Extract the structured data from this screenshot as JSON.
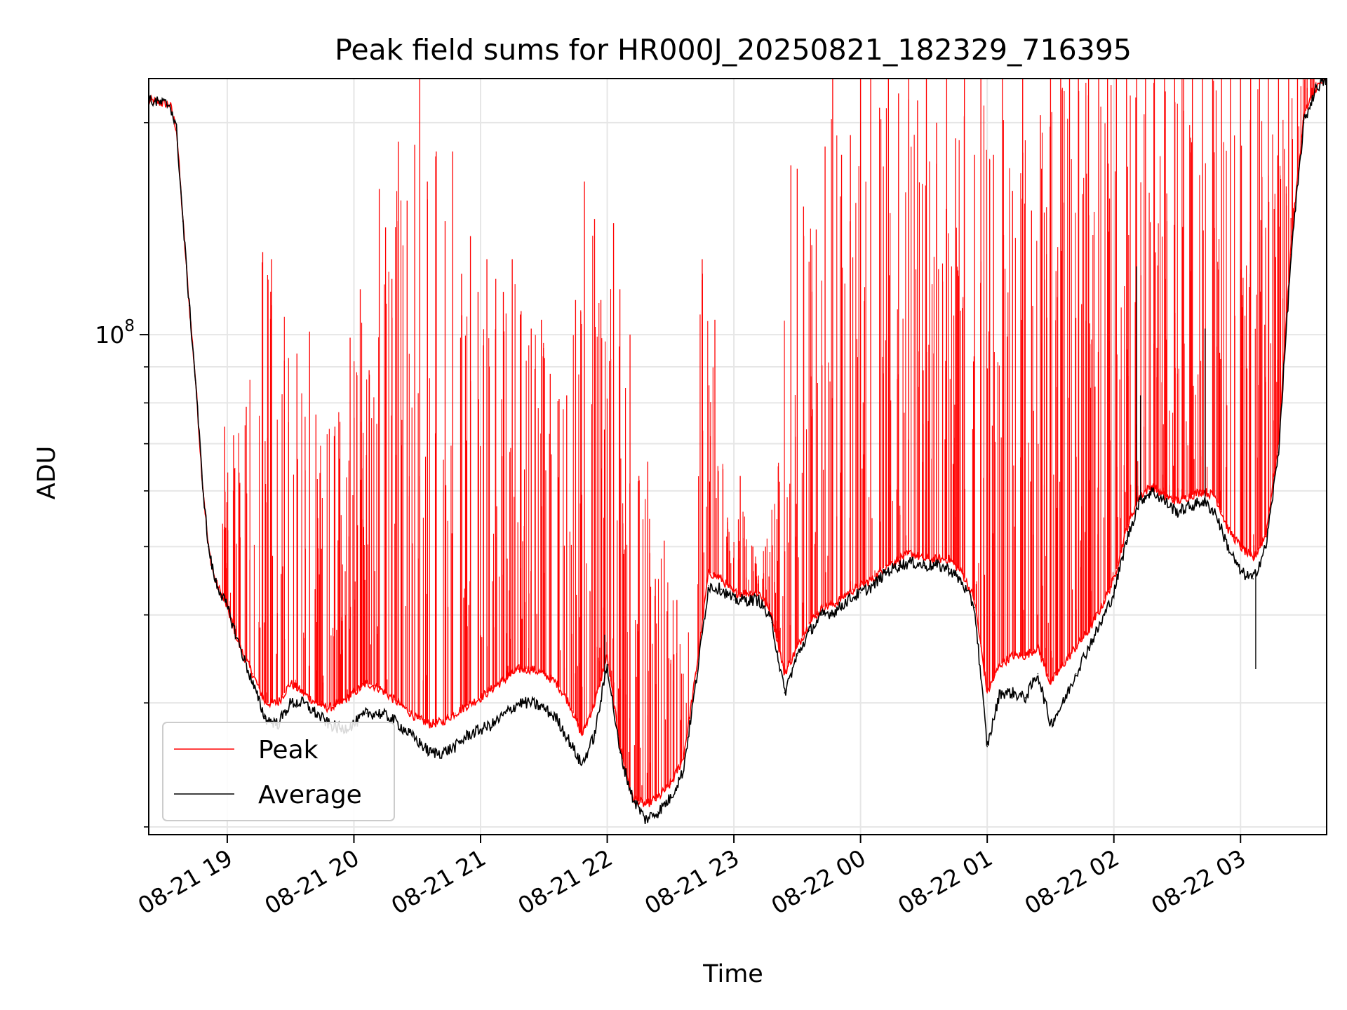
{
  "chart_data": {
    "type": "line",
    "title": "Peak field sums for HR000J_20250821_182329_716395",
    "xlabel": "Time",
    "ylabel": "ADU",
    "yscale": "log",
    "grid": true,
    "legend_position": "bottom-left",
    "xlim": [
      18.38,
      27.68
    ],
    "ylim": [
      19500000.0,
      231000000.0
    ],
    "x_ticks": [
      {
        "value": 19,
        "label": "08-21 19"
      },
      {
        "value": 20,
        "label": "08-21 20"
      },
      {
        "value": 21,
        "label": "08-21 21"
      },
      {
        "value": 22,
        "label": "08-21 22"
      },
      {
        "value": 23,
        "label": "08-21 23"
      },
      {
        "value": 24,
        "label": "08-22 00"
      },
      {
        "value": 25,
        "label": "08-22 01"
      },
      {
        "value": 26,
        "label": "08-22 02"
      },
      {
        "value": 27,
        "label": "08-22 03"
      }
    ],
    "y_major_ticks": [
      {
        "value": 100000000,
        "base": "10",
        "exp": "8"
      }
    ],
    "y_minor_ticks": [
      20000000,
      30000000,
      40000000,
      50000000,
      60000000,
      70000000,
      80000000,
      90000000,
      200000000
    ],
    "series": [
      {
        "name": "Peak",
        "color": "#ff0000",
        "x": [
          18.38,
          18.55,
          18.6,
          18.65,
          18.7,
          18.75,
          18.8,
          18.85,
          18.9,
          19.0,
          19.1,
          19.2,
          19.3,
          19.4,
          19.5,
          19.6,
          19.7,
          19.8,
          19.9,
          20.0,
          20.1,
          20.2,
          20.3,
          20.4,
          20.5,
          20.6,
          20.7,
          20.8,
          20.9,
          21.0,
          21.1,
          21.2,
          21.3,
          21.4,
          21.5,
          21.6,
          21.7,
          21.8,
          21.9,
          22.0,
          22.1,
          22.2,
          22.3,
          22.4,
          22.5,
          22.6,
          22.7,
          22.8,
          22.9,
          23.0,
          23.1,
          23.2,
          23.3,
          23.4,
          23.5,
          23.6,
          23.7,
          23.8,
          23.9,
          24.0,
          24.1,
          24.2,
          24.3,
          24.4,
          24.5,
          24.6,
          24.7,
          24.8,
          24.9,
          25.0,
          25.1,
          25.2,
          25.3,
          25.4,
          25.5,
          25.6,
          25.7,
          25.8,
          25.9,
          26.0,
          26.1,
          26.2,
          26.3,
          26.4,
          26.5,
          26.6,
          26.7,
          26.8,
          26.9,
          27.0,
          27.1,
          27.2,
          27.3,
          27.4,
          27.5,
          27.6,
          27.68
        ],
        "y": [
          215000000.0,
          212000000.0,
          195000000.0,
          145000000.0,
          110000000.0,
          86000000.0,
          63000000.0,
          50000000.0,
          45000000.0,
          41000000.0,
          36000000.0,
          33000000.0,
          30000000.0,
          30000000.0,
          32000000.0,
          31000000.0,
          30000000.0,
          29500000.0,
          30000000.0,
          31000000.0,
          32000000.0,
          31500000.0,
          30500000.0,
          29500000.0,
          28500000.0,
          28000000.0,
          28200000.0,
          29000000.0,
          29800000.0,
          30500000.0,
          31500000.0,
          32500000.0,
          33500000.0,
          33500000.0,
          33000000.0,
          32000000.0,
          30000000.0,
          27000000.0,
          30000000.0,
          35000000.0,
          26000000.0,
          22000000.0,
          21500000.0,
          22000000.0,
          23000000.0,
          25000000.0,
          33000000.0,
          46000000.0,
          45000000.0,
          43000000.0,
          43000000.0,
          43000000.0,
          40000000.0,
          33000000.0,
          36000000.0,
          39000000.0,
          41000000.0,
          41500000.0,
          43000000.0,
          44000000.0,
          45000000.0,
          47000000.0,
          48000000.0,
          49000000.0,
          48000000.0,
          48000000.0,
          48000000.0,
          46000000.0,
          42000000.0,
          31000000.0,
          34000000.0,
          35000000.0,
          35000000.0,
          36000000.0,
          32000000.0,
          34000000.0,
          36000000.0,
          38000000.0,
          41000000.0,
          45000000.0,
          53000000.0,
          59000000.0,
          61000000.0,
          59000000.0,
          58000000.0,
          59000000.0,
          60000000.0,
          59000000.0,
          53000000.0,
          50000000.0,
          48000000.0,
          52000000.0,
          70000000.0,
          135000000.0,
          205000000.0,
          225000000.0,
          230000000.0
        ],
        "spikes": [
          [
            18.98,
            74000000.0
          ],
          [
            19.05,
            72000000.0
          ],
          [
            19.15,
            79000000.0
          ],
          [
            19.28,
            131000000.0
          ],
          [
            19.35,
            128000000.0
          ],
          [
            19.55,
            94000000.0
          ],
          [
            19.65,
            101000000.0
          ],
          [
            19.7,
            77000000.0
          ],
          [
            19.85,
            74000000.0
          ],
          [
            19.97,
            99000000.0
          ],
          [
            20.05,
            116000000.0
          ],
          [
            20.12,
            89000000.0
          ],
          [
            20.2,
            161000000.0
          ],
          [
            20.25,
            142000000.0
          ],
          [
            20.3,
            120000000.0
          ],
          [
            20.35,
            188000000.0
          ],
          [
            20.42,
            155000000.0
          ],
          [
            20.48,
            186000000.0
          ],
          [
            20.52,
            231000000.0
          ],
          [
            20.58,
            165000000.0
          ],
          [
            20.65,
            182000000.0
          ],
          [
            20.72,
            145000000.0
          ],
          [
            20.78,
            182000000.0
          ],
          [
            20.85,
            122000000.0
          ],
          [
            20.92,
            138000000.0
          ],
          [
            20.98,
            115000000.0
          ],
          [
            21.05,
            128000000.0
          ],
          [
            21.12,
            120000000.0
          ],
          [
            21.18,
            115000000.0
          ],
          [
            21.25,
            128000000.0
          ],
          [
            21.32,
            108000000.0
          ],
          [
            21.4,
            102000000.0
          ],
          [
            21.48,
            105000000.0
          ],
          [
            21.55,
            88000000.0
          ],
          [
            21.62,
            81000000.0
          ],
          [
            21.68,
            82000000.0
          ],
          [
            21.75,
            112000000.0
          ],
          [
            21.82,
            165000000.0
          ],
          [
            21.9,
            146000000.0
          ],
          [
            21.95,
            112000000.0
          ],
          [
            22.05,
            144000000.0
          ],
          [
            22.1,
            116000000.0
          ],
          [
            22.18,
            100000000.0
          ],
          [
            22.25,
            63000000.0
          ],
          [
            22.32,
            66000000.0
          ],
          [
            22.38,
            45000000.0
          ],
          [
            22.45,
            51000000.0
          ],
          [
            22.55,
            42000000.0
          ],
          [
            22.6,
            33000000.0
          ],
          [
            22.75,
            128000000.0
          ],
          [
            22.85,
            105000000.0
          ],
          [
            22.95,
            55000000.0
          ],
          [
            23.05,
            63000000.0
          ],
          [
            23.15,
            50000000.0
          ],
          [
            23.25,
            50000000.0
          ],
          [
            23.35,
            65000000.0
          ],
          [
            23.45,
            174000000.0
          ],
          [
            23.5,
            172000000.0
          ],
          [
            23.55,
            152000000.0
          ],
          [
            23.65,
            141000000.0
          ],
          [
            23.72,
            185000000.0
          ],
          [
            23.78,
            231000000.0
          ],
          [
            23.85,
            180000000.0
          ],
          [
            23.92,
            192000000.0
          ],
          [
            24.0,
            231000000.0
          ],
          [
            24.08,
            231000000.0
          ],
          [
            24.15,
            210000000.0
          ],
          [
            24.22,
            231000000.0
          ],
          [
            24.3,
            220000000.0
          ],
          [
            24.38,
            231000000.0
          ],
          [
            24.45,
            215000000.0
          ],
          [
            24.52,
            231000000.0
          ],
          [
            24.6,
            200000000.0
          ],
          [
            24.68,
            231000000.0
          ],
          [
            24.75,
            190000000.0
          ],
          [
            24.82,
            231000000.0
          ],
          [
            24.9,
            180000000.0
          ],
          [
            24.95,
            231000000.0
          ],
          [
            25.05,
            180000000.0
          ],
          [
            25.12,
            231000000.0
          ],
          [
            25.2,
            160000000.0
          ],
          [
            25.28,
            231000000.0
          ],
          [
            25.35,
            150000000.0
          ],
          [
            25.42,
            205000000.0
          ],
          [
            25.5,
            231000000.0
          ],
          [
            25.58,
            231000000.0
          ],
          [
            25.65,
            231000000.0
          ],
          [
            25.72,
            231000000.0
          ],
          [
            25.8,
            231000000.0
          ],
          [
            25.88,
            231000000.0
          ],
          [
            25.95,
            231000000.0
          ],
          [
            26.02,
            231000000.0
          ],
          [
            26.1,
            231000000.0
          ],
          [
            26.18,
            231000000.0
          ],
          [
            26.25,
            231000000.0
          ],
          [
            26.32,
            231000000.0
          ],
          [
            26.4,
            231000000.0
          ],
          [
            26.48,
            231000000.0
          ],
          [
            26.55,
            231000000.0
          ],
          [
            26.62,
            231000000.0
          ],
          [
            26.7,
            231000000.0
          ],
          [
            26.78,
            231000000.0
          ],
          [
            26.85,
            231000000.0
          ],
          [
            26.92,
            231000000.0
          ],
          [
            27.0,
            231000000.0
          ],
          [
            27.08,
            231000000.0
          ],
          [
            27.15,
            231000000.0
          ],
          [
            27.22,
            231000000.0
          ],
          [
            27.3,
            231000000.0
          ],
          [
            27.38,
            231000000.0
          ],
          [
            27.45,
            231000000.0
          ]
        ]
      },
      {
        "name": "Average",
        "color": "#000000",
        "x": [
          18.38,
          18.55,
          18.6,
          18.65,
          18.7,
          18.75,
          18.8,
          18.85,
          18.9,
          19.0,
          19.1,
          19.2,
          19.3,
          19.4,
          19.5,
          19.6,
          19.7,
          19.8,
          19.9,
          20.0,
          20.1,
          20.2,
          20.3,
          20.4,
          20.5,
          20.6,
          20.7,
          20.8,
          20.9,
          21.0,
          21.1,
          21.2,
          21.3,
          21.4,
          21.5,
          21.6,
          21.7,
          21.8,
          21.9,
          22.0,
          22.1,
          22.2,
          22.3,
          22.4,
          22.5,
          22.6,
          22.7,
          22.8,
          22.9,
          23.0,
          23.1,
          23.2,
          23.3,
          23.4,
          23.5,
          23.6,
          23.7,
          23.8,
          23.9,
          24.0,
          24.1,
          24.2,
          24.3,
          24.4,
          24.5,
          24.6,
          24.7,
          24.8,
          24.9,
          25.0,
          25.1,
          25.2,
          25.3,
          25.4,
          25.5,
          25.6,
          25.7,
          25.8,
          25.9,
          26.0,
          26.1,
          26.2,
          26.3,
          26.4,
          26.5,
          26.6,
          26.7,
          26.8,
          26.9,
          27.0,
          27.1,
          27.2,
          27.3,
          27.4,
          27.5,
          27.6,
          27.68
        ],
        "y": [
          215000000.0,
          212000000.0,
          195000000.0,
          145000000.0,
          110000000.0,
          86000000.0,
          63000000.0,
          50000000.0,
          45000000.0,
          41000000.0,
          36000000.0,
          32000000.0,
          28500000.0,
          28000000.0,
          30000000.0,
          30000000.0,
          29000000.0,
          28000000.0,
          27500000.0,
          28000000.0,
          29000000.0,
          29000000.0,
          28500000.0,
          27500000.0,
          26500000.0,
          25500000.0,
          25500000.0,
          26000000.0,
          27000000.0,
          27500000.0,
          28000000.0,
          29000000.0,
          30000000.0,
          30000000.0,
          29500000.0,
          28500000.0,
          26500000.0,
          24500000.0,
          27000000.0,
          34000000.0,
          25500000.0,
          22000000.0,
          20500000.0,
          21000000.0,
          22000000.0,
          24000000.0,
          32000000.0,
          44000000.0,
          43500000.0,
          42000000.0,
          42000000.0,
          42000000.0,
          39000000.0,
          31000000.0,
          35000000.0,
          38000000.0,
          40000000.0,
          40500000.0,
          42000000.0,
          43000000.0,
          44000000.0,
          46000000.0,
          47000000.0,
          47500000.0,
          47000000.0,
          47000000.0,
          46500000.0,
          44500000.0,
          41000000.0,
          26000000.0,
          31000000.0,
          31000000.0,
          30500000.0,
          33000000.0,
          28000000.0,
          30000000.0,
          33000000.0,
          36000000.0,
          39000000.0,
          43000000.0,
          51000000.0,
          58000000.0,
          60000000.0,
          58000000.0,
          56000000.0,
          57000000.0,
          58000000.0,
          56000000.0,
          50000000.0,
          46000000.0,
          45000000.0,
          50000000.0,
          68000000.0,
          130000000.0,
          200000000.0,
          225000000.0,
          230000000.0
        ],
        "spikes": [
          [
            21.98,
            37500000.0
          ],
          [
            26.18,
            125000000.0
          ],
          [
            26.21,
            82000000.0
          ],
          [
            26.72,
            102000000.0
          ],
          [
            27.12,
            33500000.0
          ]
        ]
      }
    ]
  }
}
